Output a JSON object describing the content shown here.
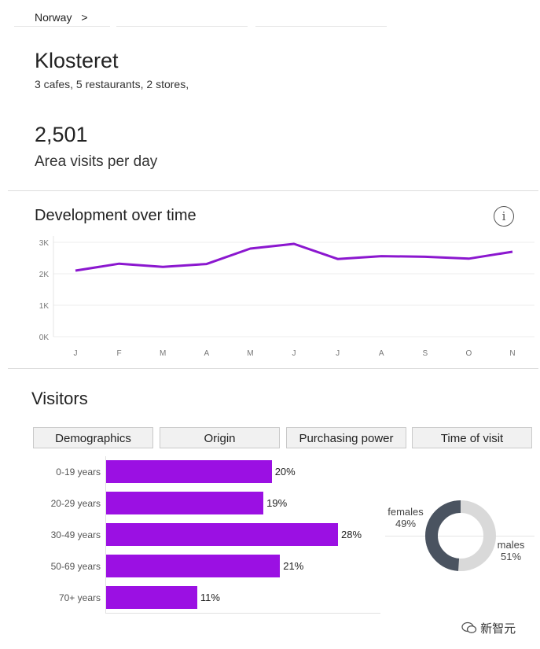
{
  "breadcrumb": {
    "country": "Norway",
    "separator": ">"
  },
  "place": {
    "name": "Klosteret",
    "summary": "3 cafes,  5 restaurants, 2 stores,"
  },
  "kpi": {
    "value": "2,501",
    "label": "Area visits per day"
  },
  "development": {
    "title": "Development over time"
  },
  "chart_data": {
    "type": "line",
    "title": "Development over time",
    "categories": [
      "J",
      "F",
      "M",
      "A",
      "M",
      "J",
      "J",
      "A",
      "S",
      "O",
      "N"
    ],
    "values": [
      2100,
      2320,
      2220,
      2310,
      2800,
      2950,
      2470,
      2560,
      2540,
      2480,
      2700
    ],
    "ylim": [
      0,
      3000
    ],
    "yticks": [
      {
        "v": 3000,
        "label": "3K"
      },
      {
        "v": 2000,
        "label": "2K"
      },
      {
        "v": 1000,
        "label": "1K"
      },
      {
        "v": 0,
        "label": "0K"
      }
    ],
    "color": "#8b17cf"
  },
  "visitors": {
    "title": "Visitors",
    "tabs": [
      "Demographics",
      "Origin",
      "Purchasing power",
      "Time of visit"
    ],
    "age_groups": [
      {
        "label": "0-19 years",
        "pct": 20,
        "text": "20%"
      },
      {
        "label": "20-29 years",
        "pct": 19,
        "text": "19%"
      },
      {
        "label": "30-49 years",
        "pct": 28,
        "text": "28%"
      },
      {
        "label": "50-69 years",
        "pct": 21,
        "text": "21%"
      },
      {
        "label": "70+ years",
        "pct": 11,
        "text": "11%"
      }
    ],
    "bar_color": "#9b10e3",
    "gender": {
      "females": {
        "label": "females",
        "pct": 49,
        "text": "49%",
        "color": "#4a5360"
      },
      "males": {
        "label": "males",
        "pct": 51,
        "text": "51%",
        "color": "#d9d9d9"
      }
    }
  },
  "watermark": {
    "text": "新智元",
    "icon": "wechat-icon"
  }
}
